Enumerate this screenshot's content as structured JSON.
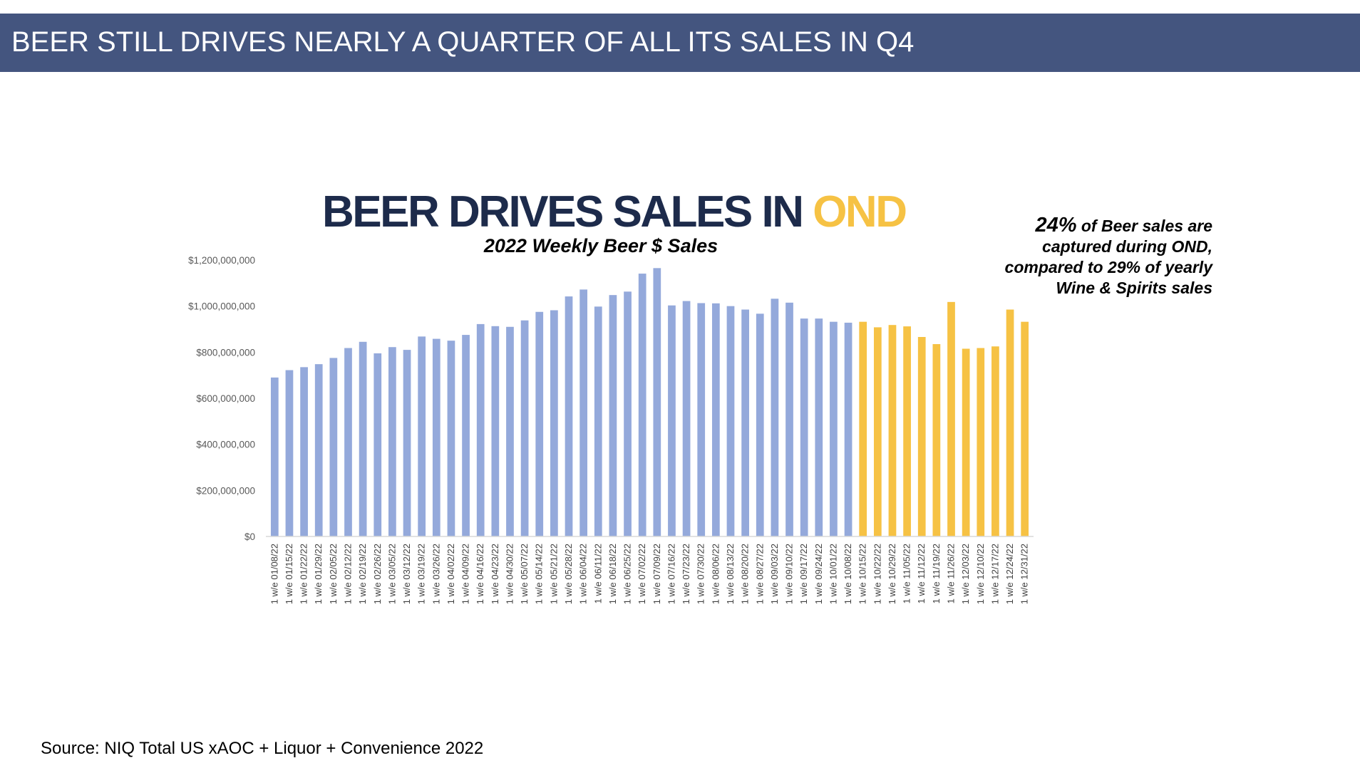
{
  "page_title": "BEER STILL DRIVES NEARLY A QUARTER OF ALL ITS SALES IN Q4",
  "headline": {
    "main": "BEER DRIVES SALES IN ",
    "accent": "OND"
  },
  "callout": {
    "percent": "24%",
    "line1_rest": " of Beer sales are",
    "line2": "captured during OND,",
    "line3": "compared to 29% of yearly",
    "line4": "Wine & Spirits sales"
  },
  "source": "Source:  NIQ Total US xAOC + Liquor + Convenience  2022",
  "colors": {
    "title_bar": "#44557f",
    "base_bar": "#94a9db",
    "ond_bar": "#f6c244",
    "headline": "#1d2b4b"
  },
  "chart_data": {
    "type": "bar",
    "title": "2022 Weekly Beer $ Sales",
    "xlabel": "",
    "ylabel": "",
    "ylim": [
      0,
      1200000000
    ],
    "y_ticks": [
      0,
      200000000,
      400000000,
      600000000,
      800000000,
      1000000000,
      1200000000
    ],
    "y_tick_labels": [
      "$0",
      "$200,000,000",
      "$400,000,000",
      "$600,000,000",
      "$800,000,000",
      "$1,000,000,000",
      "$1,200,000,000"
    ],
    "grid": false,
    "highlight_from_index": 40,
    "highlight_label": "OND",
    "categories": [
      "1 w/e 01/08/22",
      "1 w/e 01/15/22",
      "1 w/e 01/22/22",
      "1 w/e 01/29/22",
      "1 w/e 02/05/22",
      "1 w/e 02/12/22",
      "1 w/e 02/19/22",
      "1 w/e 02/26/22",
      "1 w/e 03/05/22",
      "1 w/e 03/12/22",
      "1 w/e 03/19/22",
      "1 w/e 03/26/22",
      "1 w/e 04/02/22",
      "1 w/e 04/09/22",
      "1 w/e 04/16/22",
      "1 w/e 04/23/22",
      "1 w/e 04/30/22",
      "1 w/e 05/07/22",
      "1 w/e 05/14/22",
      "1 w/e 05/21/22",
      "1 w/e 05/28/22",
      "1 w/e 06/04/22",
      "1 w/e 06/11/22",
      "1 w/e 06/18/22",
      "1 w/e 06/25/22",
      "1 w/e 07/02/22",
      "1 w/e 07/09/22",
      "1 w/e 07/16/22",
      "1 w/e 07/23/22",
      "1 w/e 07/30/22",
      "1 w/e 08/06/22",
      "1 w/e 08/13/22",
      "1 w/e 08/20/22",
      "1 w/e 08/27/22",
      "1 w/e 09/03/22",
      "1 w/e 09/10/22",
      "1 w/e 09/17/22",
      "1 w/e 09/24/22",
      "1 w/e 10/01/22",
      "1 w/e 10/08/22",
      "1 w/e 10/15/22",
      "1 w/e 10/22/22",
      "1 w/e 10/29/22",
      "1 w/e 11/05/22",
      "1 w/e 11/12/22",
      "1 w/e 11/19/22",
      "1 w/e 11/26/22",
      "1 w/e 12/03/22",
      "1 w/e 12/10/22",
      "1 w/e 12/17/22",
      "1 w/e 12/24/22",
      "1 w/e 12/31/22"
    ],
    "values": [
      690000000,
      722000000,
      735000000,
      748000000,
      775000000,
      818000000,
      845000000,
      795000000,
      822000000,
      810000000,
      868000000,
      858000000,
      850000000,
      875000000,
      922000000,
      913000000,
      910000000,
      938000000,
      975000000,
      982000000,
      1042000000,
      1072000000,
      998000000,
      1048000000,
      1063000000,
      1141000000,
      1165000000,
      1003000000,
      1022000000,
      1013000000,
      1012000000,
      1000000000,
      985000000,
      967000000,
      1032000000,
      1015000000,
      946000000,
      946000000,
      932000000,
      928000000,
      932000000,
      908000000,
      918000000,
      912000000,
      866000000,
      835000000,
      1018000000,
      815000000,
      818000000,
      825000000,
      985000000,
      932000000
    ]
  }
}
